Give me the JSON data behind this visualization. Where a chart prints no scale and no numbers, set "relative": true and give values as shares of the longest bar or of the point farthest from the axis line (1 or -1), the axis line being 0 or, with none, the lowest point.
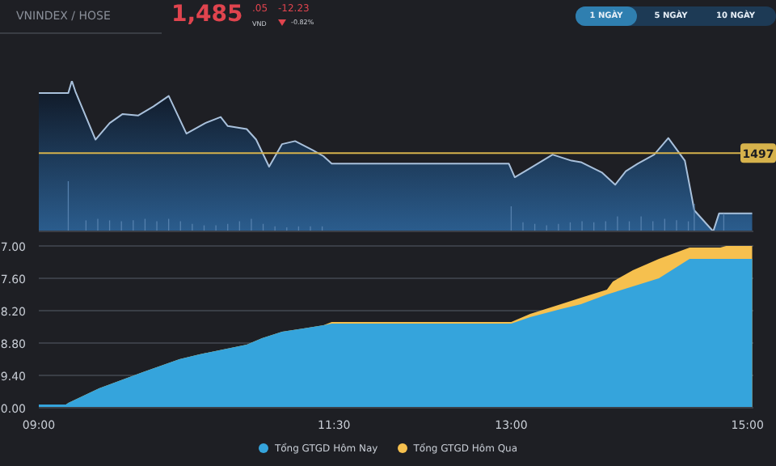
{
  "chart_data": [
    {
      "type": "area",
      "relative": true,
      "title": "VNINDEX / HOSE",
      "annotations": [
        "1,485",
        ".05",
        "VND",
        "-12.23",
        "-0.82%",
        "1 NGÀY",
        "5 NGÀY",
        "10 NGÀY",
        {
          "text": "1497",
          "y": 0.52
        }
      ],
      "xlim": [
        9,
        15.05
      ],
      "series": [
        {
          "color": "#a9c1dc",
          "x": [
            9.0,
            9.25,
            9.28,
            9.31,
            9.48,
            9.6,
            9.71,
            9.84,
            9.97,
            10.1,
            10.25,
            10.41,
            10.54,
            10.6,
            10.76,
            10.84,
            10.95,
            11.06,
            11.17,
            11.32,
            11.41,
            11.48,
            12.98,
            13.03,
            13.16,
            13.35,
            13.51,
            13.59,
            13.77,
            13.88,
            13.97,
            14.07,
            14.21,
            14.33,
            14.47,
            14.55,
            14.71,
            14.76,
            15.04
          ],
          "values": [
            0.92,
            0.92,
            1.0,
            0.93,
            0.61,
            0.72,
            0.78,
            0.77,
            0.83,
            0.9,
            0.65,
            0.72,
            0.76,
            0.7,
            0.68,
            0.61,
            0.43,
            0.58,
            0.6,
            0.54,
            0.5,
            0.45,
            0.45,
            0.36,
            0.42,
            0.51,
            0.47,
            0.46,
            0.39,
            0.31,
            0.4,
            0.45,
            0.51,
            0.62,
            0.47,
            0.14,
            0.0,
            0.12,
            0.12
          ]
        },
        {
          "type": "bar",
          "axis": "y2",
          "color": "#5580ad",
          "x": [
            9.25,
            9.4,
            9.5,
            9.6,
            9.7,
            9.8,
            9.9,
            10.0,
            10.1,
            10.2,
            10.3,
            10.4,
            10.5,
            10.6,
            10.7,
            10.8,
            10.9,
            11.0,
            11.1,
            11.2,
            11.3,
            11.4,
            13.0,
            13.1,
            13.2,
            13.3,
            13.4,
            13.5,
            13.6,
            13.7,
            13.8,
            13.9,
            14.0,
            14.1,
            14.2,
            14.3,
            14.4,
            14.5,
            14.55,
            14.8
          ],
          "values": [
            1.0,
            0.22,
            0.25,
            0.22,
            0.2,
            0.22,
            0.25,
            0.2,
            0.25,
            0.2,
            0.15,
            0.12,
            0.12,
            0.15,
            0.2,
            0.25,
            0.15,
            0.1,
            0.08,
            0.1,
            0.1,
            0.1,
            0.5,
            0.18,
            0.15,
            0.12,
            0.15,
            0.18,
            0.2,
            0.18,
            0.2,
            0.3,
            0.2,
            0.3,
            0.2,
            0.25,
            0.22,
            0.2,
            0.55,
            0.35
          ]
        }
      ],
      "ref_lines": [
        {
          "axis": "y",
          "value": 0.52,
          "color": "#d6b24c"
        }
      ]
    },
    {
      "type": "area",
      "relative": true,
      "annotations": [
        "7.00",
        "7.60",
        "8.20",
        "8.80",
        "9.40",
        "0.00"
      ],
      "xlim": [
        9,
        15.05
      ],
      "xticks": [
        {
          "value": 9,
          "label": "09:00"
        },
        {
          "value": 11.5,
          "label": "11:30"
        },
        {
          "value": 13,
          "label": "13:00"
        },
        {
          "value": 15,
          "label": "15:00"
        }
      ],
      "grid": "y",
      "legend": "bottom",
      "series": [
        {
          "name": "Tổng GTGD Hôm Nay",
          "color": "#35a4dc",
          "x": [
            9.0,
            9.23,
            9.25,
            9.51,
            9.88,
            10.19,
            10.36,
            10.76,
            10.89,
            11.06,
            11.24,
            11.41,
            11.48,
            13.0,
            13.16,
            13.42,
            13.59,
            13.81,
            14.03,
            14.25,
            14.51,
            14.77,
            15.04
          ],
          "values": [
            0.02,
            0.02,
            0.03,
            0.12,
            0.22,
            0.3,
            0.33,
            0.39,
            0.43,
            0.47,
            0.49,
            0.51,
            0.52,
            0.52,
            0.56,
            0.61,
            0.64,
            0.7,
            0.75,
            0.8,
            0.92,
            0.92,
            0.92
          ]
        },
        {
          "name": "Tổng GTGD Hôm Qua",
          "color": "#f6c04e",
          "x": [
            9.0,
            9.23,
            9.25,
            9.51,
            9.88,
            10.19,
            10.36,
            10.76,
            10.89,
            11.06,
            11.24,
            11.41,
            11.48,
            13.0,
            13.16,
            13.42,
            13.59,
            13.81,
            13.86,
            14.03,
            14.25,
            14.51,
            14.77,
            14.82,
            15.04
          ],
          "values": [
            0.02,
            0.02,
            0.03,
            0.12,
            0.22,
            0.3,
            0.33,
            0.39,
            0.43,
            0.47,
            0.49,
            0.51,
            0.53,
            0.53,
            0.58,
            0.64,
            0.68,
            0.73,
            0.78,
            0.85,
            0.92,
            0.99,
            0.99,
            1.0,
            1.0
          ]
        }
      ]
    }
  ]
}
